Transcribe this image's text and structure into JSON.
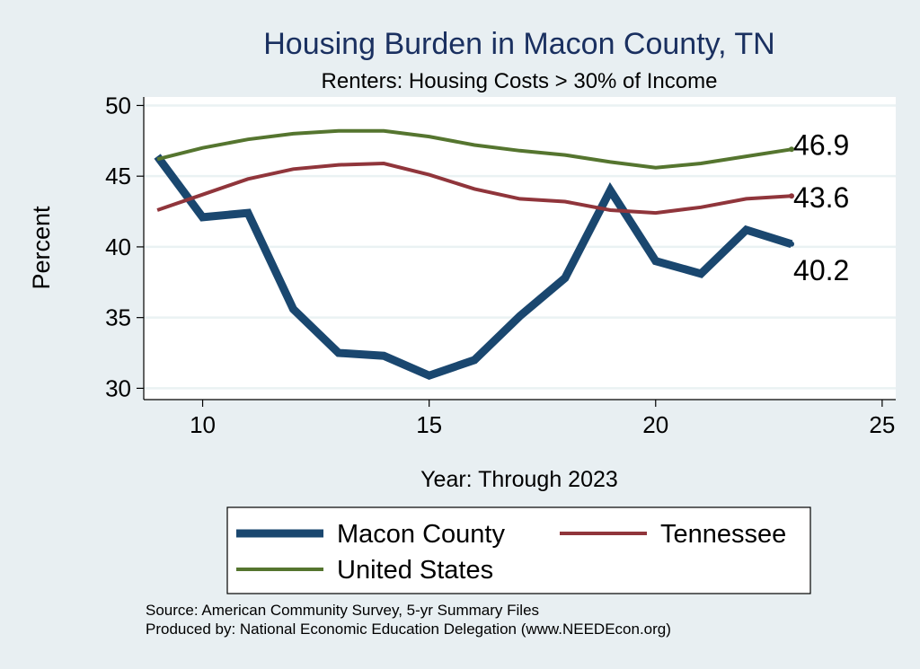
{
  "chart_data": {
    "type": "line",
    "title": "Housing Burden in Macon County, TN",
    "subtitle": "Renters: Housing Costs > 30% of Income",
    "xlabel": "Year: Through 2023",
    "ylabel": "Percent",
    "xlim": [
      8.7,
      25.3
    ],
    "ylim": [
      29.2,
      50.6
    ],
    "xticks": [
      10,
      15,
      20,
      25
    ],
    "yticks": [
      30,
      35,
      40,
      45,
      50
    ],
    "grid": true,
    "legend_position": "bottom",
    "x": [
      9,
      10,
      11,
      12,
      13,
      14,
      15,
      16,
      17,
      18,
      19,
      20,
      21,
      22,
      23
    ],
    "series": [
      {
        "name": "Macon County",
        "color": "#1a476f",
        "values": [
          46.4,
          42.1,
          42.4,
          35.6,
          32.5,
          32.3,
          30.9,
          32.0,
          35.1,
          37.8,
          44.0,
          39.0,
          38.1,
          41.2,
          40.2
        ],
        "end_label": "40.2"
      },
      {
        "name": "Tennessee",
        "color": "#90353b",
        "values": [
          42.6,
          43.7,
          44.8,
          45.5,
          45.8,
          45.9,
          45.1,
          44.1,
          43.4,
          43.2,
          42.6,
          42.4,
          42.8,
          43.4,
          43.6
        ],
        "end_label": "43.6"
      },
      {
        "name": "United States",
        "color": "#55752f",
        "values": [
          46.2,
          47.0,
          47.6,
          48.0,
          48.2,
          48.2,
          47.8,
          47.2,
          46.8,
          46.5,
          46.0,
          45.6,
          45.9,
          46.4,
          46.9
        ],
        "end_label": "46.9"
      }
    ],
    "legend": [
      "Macon County",
      "Tennessee",
      "United States"
    ]
  },
  "source_note": "Source: American Community Survey, 5-yr Summary Files",
  "produced_note": "Produced by: National Economic Education Delegation (www.NEEDEcon.org)"
}
